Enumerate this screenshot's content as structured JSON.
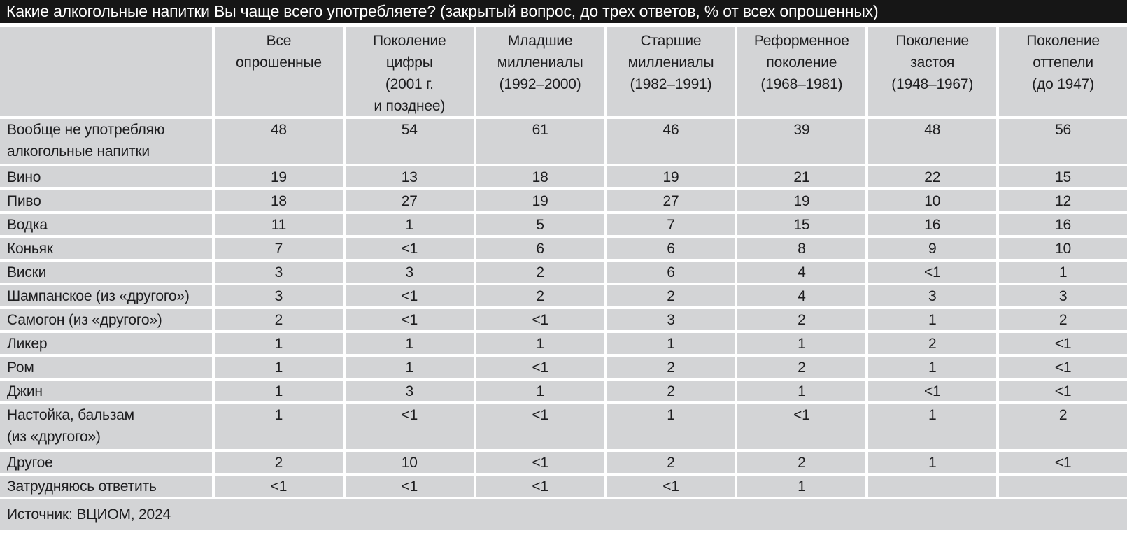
{
  "title": "Какие алкогольные напитки Вы чаще всего употребляете? (закрытый вопрос, до трех ответов, % от всех опрошенных)",
  "chart_data": {
    "type": "table",
    "title": "Какие алкогольные напитки Вы чаще всего употребляете? (закрытый вопрос, до трех ответов, % от всех опрошенных)",
    "unit": "% от всех опрошенных",
    "columns": [
      "Все опрошенные",
      "Поколение цифры (2001 г. и позднее)",
      "Младшие миллениалы (1992–2000)",
      "Старшие миллениалы (1982–1991)",
      "Реформенное поколение (1968–1981)",
      "Поколение застоя (1948–1967)",
      "Поколение оттепели (до 1947)"
    ],
    "rows": [
      {
        "label": "Вообще не употребляю алкогольные напитки",
        "values": [
          "48",
          "54",
          "61",
          "46",
          "39",
          "48",
          "56"
        ]
      },
      {
        "label": "Вино",
        "values": [
          "19",
          "13",
          "18",
          "19",
          "21",
          "22",
          "15"
        ]
      },
      {
        "label": "Пиво",
        "values": [
          "18",
          "27",
          "19",
          "27",
          "19",
          "10",
          "12"
        ]
      },
      {
        "label": "Водка",
        "values": [
          "11",
          "1",
          "5",
          "7",
          "15",
          "16",
          "16"
        ]
      },
      {
        "label": "Коньяк",
        "values": [
          "7",
          "<1",
          "6",
          "6",
          "8",
          "9",
          "10"
        ]
      },
      {
        "label": "Виски",
        "values": [
          "3",
          "3",
          "2",
          "6",
          "4",
          "<1",
          "1"
        ]
      },
      {
        "label": "Шампанское (из «другого»)",
        "values": [
          "3",
          "<1",
          "2",
          "2",
          "4",
          "3",
          "3"
        ]
      },
      {
        "label": "Самогон (из «другого»)",
        "values": [
          "2",
          "<1",
          "<1",
          "3",
          "2",
          "1",
          "2"
        ]
      },
      {
        "label": "Ликер",
        "values": [
          "1",
          "1",
          "1",
          "1",
          "1",
          "2",
          "<1"
        ]
      },
      {
        "label": "Ром",
        "values": [
          "1",
          "1",
          "<1",
          "2",
          "2",
          "1",
          "<1"
        ]
      },
      {
        "label": "Джин",
        "values": [
          "1",
          "3",
          "1",
          "2",
          "1",
          "<1",
          "<1"
        ]
      },
      {
        "label": "Настойка, бальзам (из «другого»)",
        "values": [
          "1",
          "<1",
          "<1",
          "1",
          "<1",
          "1",
          "2"
        ]
      },
      {
        "label": "Другое",
        "values": [
          "2",
          "10",
          "<1",
          "2",
          "2",
          "1",
          "<1"
        ]
      },
      {
        "label": "Затрудняюсь ответить",
        "values": [
          "<1",
          "<1",
          "<1",
          "<1",
          "1",
          "",
          ""
        ]
      }
    ],
    "source": "Источник: ВЦИОМ, 2024"
  },
  "display": {
    "column_lines": [
      "",
      "Все\nопрошенные",
      "Поколение\nцифры\n(2001 г.\nи позднее)",
      "Младшие\nмиллениалы\n(1992–2000)",
      "Старшие\nмиллениалы\n(1982–1991)",
      "Реформенное\nпоколение\n(1968–1981)",
      "Поколение\nзастоя\n(1948–1967)",
      "Поколение\nоттепели\n(до 1947)"
    ],
    "row_label_lines": {
      "0": "Вообще не употребляю\nалкогольные напитки",
      "11": "Настойка, бальзам\n(из «другого»)"
    }
  },
  "footer": {
    "source": "Источник: ВЦИОМ, 2024"
  },
  "colors": {
    "title_bar_bg": "#161616",
    "title_bar_text": "#ffffff",
    "cell_bg": "#d3d4d6",
    "cell_text": "#1d1d1f",
    "separator": "#ffffff"
  }
}
